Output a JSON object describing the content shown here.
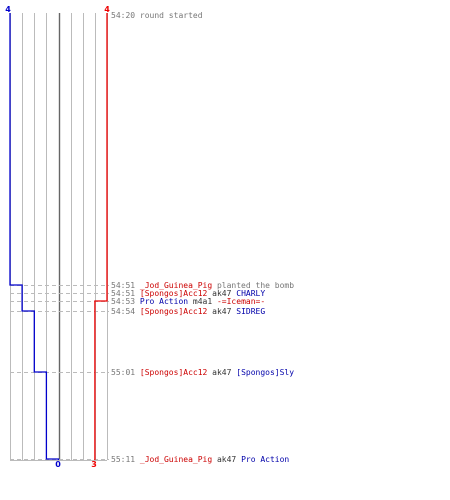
{
  "colors": {
    "team_a": "#0000cc",
    "team_b": "#ee0000",
    "grid": "#bbbbbb",
    "grid_dark": "#666666",
    "guide": "#bbbbbb",
    "time": "#777777"
  },
  "chart_data": {
    "type": "line",
    "ylim": [
      0,
      4
    ],
    "x": [
      "54:20",
      "54:51",
      "54:51",
      "54:53",
      "54:54",
      "55:01",
      "55:11"
    ],
    "series": [
      {
        "values": [
          4,
          3,
          3,
          3,
          2,
          1,
          0
        ]
      },
      {
        "values": [
          4,
          4,
          4,
          3,
          3,
          3,
          3
        ]
      }
    ],
    "labels": {
      "team_a_start": "4",
      "team_b_start": "4",
      "team_a_end": "0",
      "team_b_end": "3"
    }
  },
  "events": [
    {
      "time": "54:20",
      "parts": [
        {
          "text": "round started",
          "style": "note"
        }
      ]
    },
    {
      "time": "54:51",
      "parts": [
        {
          "text": "_Jod_Guinea_Pig",
          "style": "red"
        },
        {
          "text": " planted the bomb",
          "style": "note"
        }
      ]
    },
    {
      "time": "54:51",
      "parts": [
        {
          "text": "[Spongos]Acc12",
          "style": "red"
        },
        {
          "text": " ak47 ",
          "style": "plain"
        },
        {
          "text": "CHARLY",
          "style": "blue"
        }
      ]
    },
    {
      "time": "54:53",
      "parts": [
        {
          "text": "Pro Action",
          "style": "blue"
        },
        {
          "text": " m4a1 ",
          "style": "plain"
        },
        {
          "text": "-=Iceman=-",
          "style": "red"
        }
      ]
    },
    {
      "time": "54:54",
      "parts": [
        {
          "text": "[Spongos]Acc12",
          "style": "red"
        },
        {
          "text": " ak47 ",
          "style": "plain"
        },
        {
          "text": "SIDREG",
          "style": "blue"
        }
      ]
    },
    {
      "time": "55:01",
      "parts": [
        {
          "text": "[Spongos]Acc12",
          "style": "red"
        },
        {
          "text": " ak47 ",
          "style": "plain"
        },
        {
          "text": "[Spongos]Sly",
          "style": "blue"
        }
      ]
    },
    {
      "time": "55:11",
      "parts": [
        {
          "text": "_Jod_Guinea_Pig",
          "style": "red"
        },
        {
          "text": " ak47 ",
          "style": "plain"
        },
        {
          "text": "Pro Action",
          "style": "blue"
        }
      ]
    }
  ]
}
